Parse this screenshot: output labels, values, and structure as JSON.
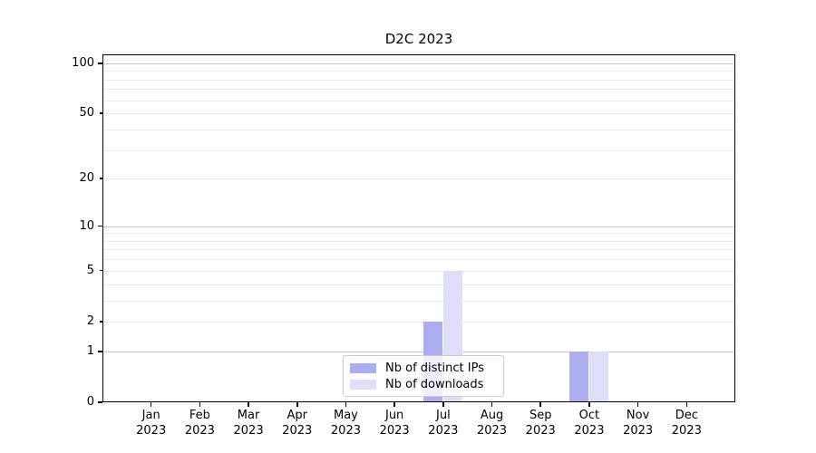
{
  "figure": {
    "title": "D2C 2023",
    "background": "#ffffff"
  },
  "chart_data": {
    "type": "bar",
    "title": "D2C 2023",
    "x_categories": [
      "Jan 2023",
      "Feb 2023",
      "Mar 2023",
      "Apr 2023",
      "May 2023",
      "Jun 2023",
      "Jul 2023",
      "Aug 2023",
      "Sep 2023",
      "Oct 2023",
      "Nov 2023",
      "Dec 2023"
    ],
    "series": [
      {
        "name": "Nb of distinct IPs",
        "color": "#acacf0",
        "values": [
          0,
          0,
          0,
          0,
          0,
          0,
          2,
          0,
          0,
          1,
          0,
          0
        ]
      },
      {
        "name": "Nb of downloads",
        "color": "#dedef8",
        "values": [
          0,
          0,
          0,
          0,
          0,
          0,
          5,
          0,
          0,
          1,
          0,
          0
        ]
      }
    ],
    "y_scale": "log1p",
    "ylim": [
      0,
      113
    ],
    "y_ticks_labeled": [
      0,
      1,
      2,
      5,
      10,
      20,
      50,
      100
    ],
    "y_gridlines_major": [
      1,
      10,
      100
    ],
    "y_gridlines_minor": [
      2,
      3,
      4,
      5,
      6,
      7,
      8,
      9,
      20,
      30,
      40,
      50,
      60,
      70,
      80,
      90
    ],
    "grid": true,
    "legend_position": "lower center"
  },
  "colors": {
    "bar_distinct_ips": "#acacf0",
    "bar_downloads": "#dedef8",
    "grid_major": "#c9c9c9",
    "grid_minor": "#e9e9e9",
    "axis": "#000000",
    "legend_border": "#cccccc"
  }
}
